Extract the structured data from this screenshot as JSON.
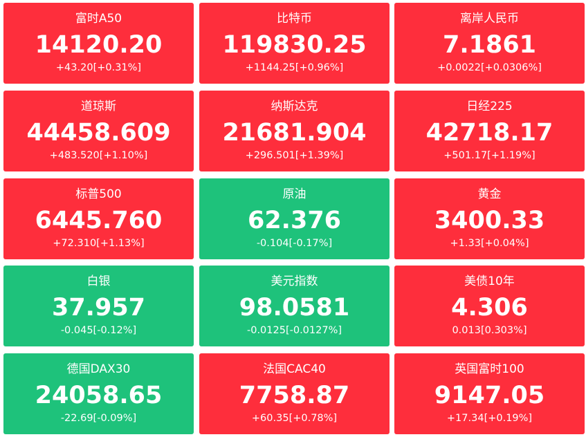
{
  "colors": {
    "up": "#fe2e3c",
    "down": "#1ec27b",
    "text": "#ffffff"
  },
  "tiles": [
    {
      "name": "富时A50",
      "price": "14120.20",
      "change": "+43.20[+0.31%]",
      "trend": "up"
    },
    {
      "name": "比特币",
      "price": "119830.25",
      "change": "+1144.25[+0.96%]",
      "trend": "up"
    },
    {
      "name": "离岸人民币",
      "price": "7.1861",
      "change": "+0.0022[+0.0306%]",
      "trend": "up"
    },
    {
      "name": "道琼斯",
      "price": "44458.609",
      "change": "+483.520[+1.10%]",
      "trend": "up"
    },
    {
      "name": "纳斯达克",
      "price": "21681.904",
      "change": "+296.501[+1.39%]",
      "trend": "up"
    },
    {
      "name": "日经225",
      "price": "42718.17",
      "change": "+501.17[+1.19%]",
      "trend": "up"
    },
    {
      "name": "标普500",
      "price": "6445.760",
      "change": "+72.310[+1.13%]",
      "trend": "up"
    },
    {
      "name": "原油",
      "price": "62.376",
      "change": "-0.104[-0.17%]",
      "trend": "down"
    },
    {
      "name": "黄金",
      "price": "3400.33",
      "change": "+1.33[+0.04%]",
      "trend": "up"
    },
    {
      "name": "白银",
      "price": "37.957",
      "change": "-0.045[-0.12%]",
      "trend": "down"
    },
    {
      "name": "美元指数",
      "price": "98.0581",
      "change": "-0.0125[-0.0127%]",
      "trend": "down"
    },
    {
      "name": "美债10年",
      "price": "4.306",
      "change": "0.013[0.303%]",
      "trend": "up"
    },
    {
      "name": "德国DAX30",
      "price": "24058.65",
      "change": "-22.69[-0.09%]",
      "trend": "down"
    },
    {
      "name": "法国CAC40",
      "price": "7758.87",
      "change": "+60.35[+0.78%]",
      "trend": "up"
    },
    {
      "name": "英国富时100",
      "price": "9147.05",
      "change": "+17.34[+0.19%]",
      "trend": "up"
    }
  ]
}
